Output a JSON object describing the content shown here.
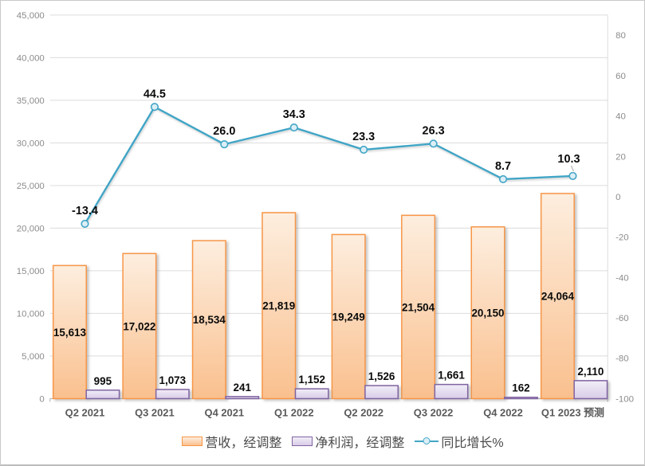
{
  "chart_data": {
    "type": "bar",
    "subtype": "combo-bar-line",
    "categories": [
      "Q2 2021",
      "Q3 2021",
      "Q4 2021",
      "Q1 2022",
      "Q2 2022",
      "Q3 2022",
      "Q4 2022",
      "Q1 2023 预测"
    ],
    "series": [
      {
        "name": "营收，经调整",
        "type": "bar",
        "axis": "left",
        "color": "#F79646",
        "fill_top": "#FDEEDF",
        "fill_bottom": "#FAC08E",
        "values": [
          15613,
          17022,
          18534,
          21819,
          19249,
          21504,
          20150,
          24064
        ],
        "labels": [
          "15,613",
          "17,022",
          "18,534",
          "21,819",
          "19,249",
          "21,504",
          "20,150",
          "24,064"
        ],
        "label_position": "inside-center"
      },
      {
        "name": "净利润，经调整",
        "type": "bar",
        "axis": "left",
        "color": "#8064A2",
        "fill_top": "#F1EEF7",
        "fill_bottom": "#D9CCE8",
        "values": [
          995,
          1073,
          241,
          1152,
          1526,
          1661,
          162,
          2110
        ],
        "labels": [
          "995",
          "1,073",
          "241",
          "1,152",
          "1,526",
          "1,661",
          "162",
          "2,110"
        ],
        "label_position": "outside-top"
      },
      {
        "name": "同比增长%",
        "type": "line",
        "axis": "right",
        "color": "#41A5C6",
        "marker_fill": "#DCEFF6",
        "values": [
          -13.4,
          44.5,
          26.0,
          34.3,
          23.3,
          26.3,
          8.7,
          10.3
        ],
        "labels": [
          "-13.4",
          "44.5",
          "26.0",
          "34.3",
          "23.3",
          "26.3",
          "8.7",
          "10.3"
        ]
      }
    ],
    "left_axis": {
      "min": 0,
      "max": 45000,
      "step": 5000,
      "tick_values": [
        45000,
        40000,
        35000,
        30000,
        25000,
        20000,
        15000,
        10000,
        5000,
        0
      ],
      "tick_labels": [
        "45,000",
        "40,000",
        "35,000",
        "30,000",
        "25,000",
        "20,000",
        "15,000",
        "10,000",
        "5,000",
        "0"
      ]
    },
    "right_axis": {
      "min": -100,
      "max": 90,
      "step": 20,
      "tick_values": [
        80,
        60,
        40,
        20,
        0,
        -20,
        -40,
        -60,
        -80,
        -100
      ],
      "tick_labels": [
        "80",
        "60",
        "40",
        "20",
        "0",
        "-20",
        "-40",
        "-60",
        "-80",
        "-100"
      ]
    },
    "grid": true,
    "legend_position": "bottom"
  },
  "colors": {
    "grid": "#DCDCDC",
    "axis": "#ABABAB",
    "tick_label": "#8C8C8C",
    "category_label": "#595959",
    "value_label": "#0A0A0A",
    "leader_line": "#A6A6A6"
  }
}
